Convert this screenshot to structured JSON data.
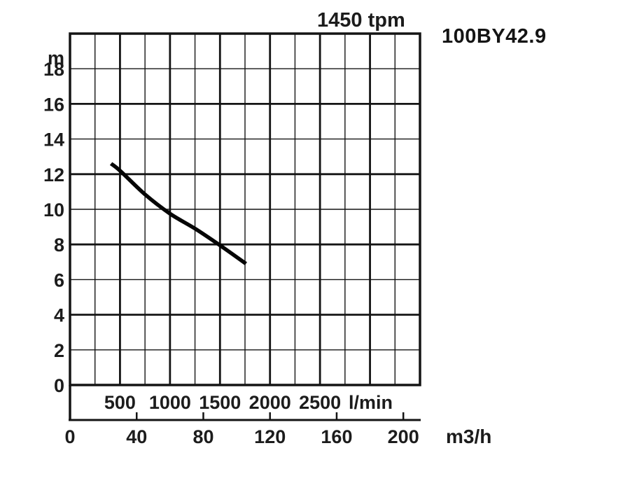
{
  "chart_data": {
    "type": "line",
    "title": "1450 tpm",
    "model": "100BY42.9",
    "x_axis": {
      "unit": "l/min",
      "range": [
        0,
        3500
      ],
      "gridline_step": 250,
      "major_every": 500,
      "tick_labels": [
        500,
        1000,
        1500,
        2000,
        2500
      ]
    },
    "x_axis_secondary": {
      "unit": "m3/h",
      "range": [
        0,
        210
      ],
      "tick_labels": [
        0,
        40,
        80,
        120,
        160,
        200
      ]
    },
    "y_axis": {
      "unit": "m",
      "range": [
        0,
        20
      ],
      "gridline_step": 2,
      "major_every": 4,
      "tick_labels": [
        0,
        2,
        4,
        6,
        8,
        10,
        12,
        14,
        16,
        18
      ]
    },
    "series": [
      {
        "name": "100BY42.9",
        "points": [
          {
            "flow_lmin": 410,
            "head_m": 12.6
          },
          {
            "flow_lmin": 500,
            "head_m": 12.2
          },
          {
            "flow_lmin": 750,
            "head_m": 10.85
          },
          {
            "flow_lmin": 1000,
            "head_m": 9.75
          },
          {
            "flow_lmin": 1250,
            "head_m": 8.9
          },
          {
            "flow_lmin": 1500,
            "head_m": 7.95
          },
          {
            "flow_lmin": 1760,
            "head_m": 6.9
          }
        ]
      }
    ],
    "grid": true,
    "legend_position": "none",
    "colors": {
      "curve": "#050505",
      "grid": "#141414",
      "text": "#1c1c1c",
      "background": "#ffffff"
    }
  }
}
